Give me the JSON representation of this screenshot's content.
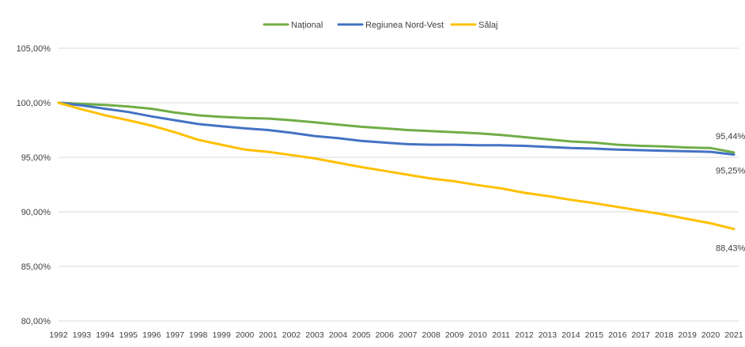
{
  "chart_data": {
    "type": "line",
    "x": [
      "1992",
      "1993",
      "1994",
      "1995",
      "1996",
      "1997",
      "1998",
      "1999",
      "2000",
      "2001",
      "2002",
      "2003",
      "2004",
      "2005",
      "2006",
      "2007",
      "2008",
      "2009",
      "2010",
      "2011",
      "2012",
      "2013",
      "2014",
      "2015",
      "2016",
      "2017",
      "2018",
      "2019",
      "2020",
      "2021"
    ],
    "ylim": [
      80,
      105
    ],
    "yticks": [
      80,
      85,
      90,
      95,
      100,
      105
    ],
    "ytick_labels": [
      "80,00%",
      "85,00%",
      "90,00%",
      "95,00%",
      "100,00%",
      "105,00%"
    ],
    "grid": true,
    "legend": "top-center",
    "series": [
      {
        "name": "Național",
        "color": "#70ad47",
        "values": [
          100.0,
          99.9,
          99.8,
          99.65,
          99.45,
          99.1,
          98.85,
          98.7,
          98.6,
          98.55,
          98.4,
          98.2,
          98.0,
          97.8,
          97.65,
          97.5,
          97.4,
          97.3,
          97.2,
          97.05,
          96.85,
          96.65,
          96.45,
          96.35,
          96.15,
          96.05,
          96.0,
          95.9,
          95.85,
          95.44
        ],
        "end_label": "95,44%"
      },
      {
        "name": "Regiunea Nord-Vest",
        "color": "#4472c4",
        "values": [
          100.0,
          99.75,
          99.45,
          99.15,
          98.75,
          98.4,
          98.05,
          97.85,
          97.65,
          97.5,
          97.25,
          96.95,
          96.75,
          96.5,
          96.35,
          96.2,
          96.15,
          96.15,
          96.1,
          96.1,
          96.05,
          95.95,
          95.85,
          95.8,
          95.7,
          95.65,
          95.6,
          95.55,
          95.5,
          95.25
        ],
        "end_label": "95,25%"
      },
      {
        "name": "Sălaj",
        "color": "#ffc000",
        "values": [
          100.0,
          99.4,
          98.85,
          98.4,
          97.9,
          97.3,
          96.6,
          96.15,
          95.7,
          95.5,
          95.2,
          94.9,
          94.5,
          94.1,
          93.75,
          93.4,
          93.05,
          92.8,
          92.45,
          92.15,
          91.75,
          91.45,
          91.1,
          90.8,
          90.45,
          90.1,
          89.75,
          89.35,
          88.95,
          88.43
        ],
        "end_label": "88,43%"
      }
    ]
  }
}
